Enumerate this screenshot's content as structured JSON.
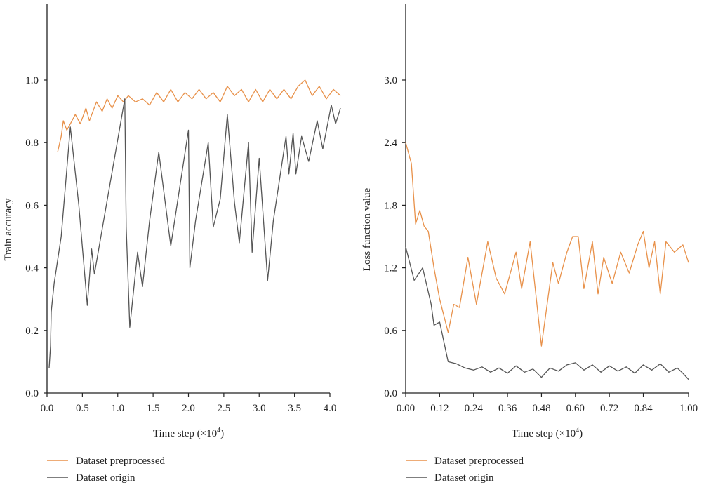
{
  "colors": {
    "preprocessed": "#e8914a",
    "origin": "#555555",
    "axis": "#222222"
  },
  "chart_data": [
    {
      "type": "line",
      "xlabel": "Time step (×10",
      "xlabel_sup": "4",
      "xlabel_end": ")",
      "ylabel": "Train accuracy",
      "xlim": [
        0,
        4.0
      ],
      "ylim": [
        0,
        1.0
      ],
      "xticks": [
        "0.0",
        "0.5",
        "1.0",
        "1.5",
        "2.0",
        "2.5",
        "3.0",
        "3.5",
        "4.0"
      ],
      "yticks": [
        "0.0",
        "0.2",
        "0.4",
        "0.6",
        "0.8",
        "1.0"
      ],
      "legend": [
        "Dataset preprocessed",
        "Dataset origin"
      ],
      "legend_placement": "bottom",
      "series": [
        {
          "name": "Dataset preprocessed",
          "color_key": "preprocessed",
          "x": [
            0.15,
            0.2,
            0.23,
            0.28,
            0.33,
            0.4,
            0.47,
            0.55,
            0.6,
            0.7,
            0.78,
            0.85,
            0.92,
            1.0,
            1.08,
            1.15,
            1.25,
            1.35,
            1.45,
            1.55,
            1.65,
            1.75,
            1.85,
            1.95,
            2.05,
            2.15,
            2.25,
            2.35,
            2.45,
            2.55,
            2.65,
            2.75,
            2.85,
            2.95,
            3.05,
            3.15,
            3.25,
            3.35,
            3.45,
            3.55,
            3.65,
            3.75,
            3.85,
            3.95,
            4.05,
            4.15
          ],
          "y": [
            0.77,
            0.82,
            0.87,
            0.84,
            0.86,
            0.89,
            0.86,
            0.91,
            0.87,
            0.93,
            0.9,
            0.94,
            0.91,
            0.95,
            0.93,
            0.95,
            0.93,
            0.94,
            0.92,
            0.96,
            0.93,
            0.97,
            0.93,
            0.96,
            0.94,
            0.97,
            0.94,
            0.96,
            0.93,
            0.98,
            0.95,
            0.97,
            0.93,
            0.97,
            0.93,
            0.97,
            0.94,
            0.97,
            0.94,
            0.98,
            1.0,
            0.95,
            0.98,
            0.94,
            0.97,
            0.95
          ]
        },
        {
          "name": "Dataset origin",
          "color_key": "origin",
          "x": [
            0.03,
            0.05,
            0.06,
            0.1,
            0.2,
            0.33,
            0.45,
            0.57,
            0.63,
            0.67,
            0.8,
            1.1,
            1.12,
            1.17,
            1.28,
            1.35,
            1.45,
            1.58,
            1.75,
            2.0,
            2.02,
            2.1,
            2.28,
            2.35,
            2.45,
            2.55,
            2.65,
            2.72,
            2.85,
            2.9,
            3.0,
            3.12,
            3.2,
            3.38,
            3.42,
            3.48,
            3.52,
            3.6,
            3.7,
            3.82,
            3.9,
            4.02,
            4.08,
            4.15
          ],
          "y": [
            0.08,
            0.15,
            0.26,
            0.35,
            0.5,
            0.85,
            0.6,
            0.28,
            0.46,
            0.38,
            0.55,
            0.94,
            0.53,
            0.21,
            0.45,
            0.34,
            0.55,
            0.77,
            0.47,
            0.84,
            0.4,
            0.55,
            0.8,
            0.53,
            0.62,
            0.89,
            0.61,
            0.48,
            0.8,
            0.45,
            0.75,
            0.36,
            0.55,
            0.82,
            0.7,
            0.83,
            0.7,
            0.82,
            0.74,
            0.87,
            0.78,
            0.92,
            0.86,
            0.91
          ]
        }
      ]
    },
    {
      "type": "line",
      "xlabel": "Time step (×10",
      "xlabel_sup": "4",
      "xlabel_end": ")",
      "ylabel": "Loss function value",
      "xlim": [
        0,
        1.0
      ],
      "ylim": [
        0,
        3.0
      ],
      "xticks": [
        "0.00",
        "0.12",
        "0.24",
        "0.36",
        "0.48",
        "0.60",
        "0.72",
        "0.84",
        "1.00"
      ],
      "yticks": [
        "0.0",
        "0.6",
        "1.2",
        "1.8",
        "2.4",
        "3.0"
      ],
      "legend": [
        "Dataset preprocessed",
        "Dataset origin"
      ],
      "legend_placement": "bottom",
      "series": [
        {
          "name": "Dataset preprocessed",
          "color_key": "preprocessed",
          "x": [
            0.0,
            0.02,
            0.035,
            0.05,
            0.065,
            0.08,
            0.1,
            0.12,
            0.15,
            0.17,
            0.19,
            0.22,
            0.25,
            0.29,
            0.32,
            0.35,
            0.39,
            0.41,
            0.44,
            0.48,
            0.52,
            0.54,
            0.57,
            0.59,
            0.61,
            0.63,
            0.66,
            0.68,
            0.7,
            0.73,
            0.76,
            0.79,
            0.82,
            0.84,
            0.86,
            0.88,
            0.9,
            0.92,
            0.95,
            0.98,
            1.0
          ],
          "y": [
            2.4,
            2.2,
            1.62,
            1.75,
            1.6,
            1.55,
            1.2,
            0.9,
            0.58,
            0.85,
            0.82,
            1.3,
            0.85,
            1.45,
            1.1,
            0.95,
            1.35,
            1.0,
            1.45,
            0.45,
            1.25,
            1.05,
            1.35,
            1.5,
            1.5,
            1.0,
            1.45,
            0.95,
            1.3,
            1.05,
            1.35,
            1.15,
            1.42,
            1.55,
            1.2,
            1.45,
            0.95,
            1.45,
            1.35,
            1.42,
            1.25
          ]
        },
        {
          "name": "Dataset origin",
          "color_key": "origin",
          "x": [
            0.0,
            0.03,
            0.06,
            0.09,
            0.1,
            0.12,
            0.15,
            0.18,
            0.21,
            0.24,
            0.27,
            0.3,
            0.33,
            0.36,
            0.39,
            0.42,
            0.45,
            0.48,
            0.51,
            0.54,
            0.57,
            0.6,
            0.63,
            0.66,
            0.69,
            0.72,
            0.75,
            0.78,
            0.81,
            0.84,
            0.87,
            0.9,
            0.93,
            0.96,
            0.98,
            1.0
          ],
          "y": [
            1.4,
            1.08,
            1.2,
            0.85,
            0.65,
            0.68,
            0.3,
            0.28,
            0.24,
            0.22,
            0.25,
            0.2,
            0.24,
            0.19,
            0.26,
            0.2,
            0.23,
            0.15,
            0.24,
            0.21,
            0.27,
            0.29,
            0.22,
            0.27,
            0.2,
            0.26,
            0.21,
            0.25,
            0.19,
            0.27,
            0.22,
            0.28,
            0.2,
            0.24,
            0.19,
            0.13
          ]
        }
      ]
    }
  ]
}
